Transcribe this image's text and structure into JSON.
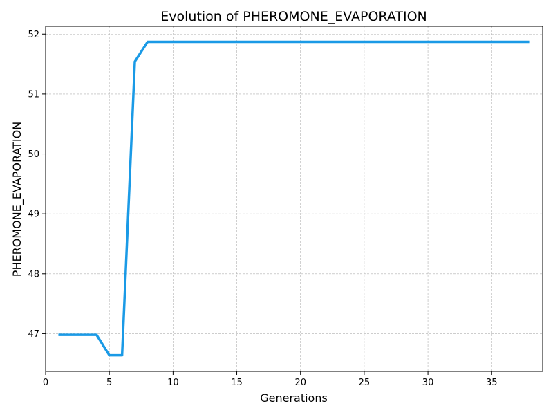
{
  "chart_data": {
    "type": "line",
    "title": "Evolution of PHEROMONE_EVAPORATION",
    "xlabel": "Generations",
    "ylabel": "PHEROMONE_EVAPORATION",
    "xlim": [
      0,
      39
    ],
    "ylim": [
      46.37,
      52.13
    ],
    "xticks": [
      0,
      5,
      10,
      15,
      20,
      25,
      30,
      35
    ],
    "yticks": [
      47,
      48,
      49,
      50,
      51,
      52
    ],
    "grid": true,
    "color": "#1a9ae6",
    "series": [
      {
        "x": [
          1,
          2,
          3,
          4,
          5,
          6,
          7,
          8,
          9,
          10,
          11,
          12,
          13,
          14,
          15,
          16,
          17,
          18,
          19,
          20,
          21,
          22,
          23,
          24,
          25,
          26,
          27,
          28,
          29,
          30,
          31,
          32,
          33,
          34,
          35,
          36,
          37,
          38
        ],
        "values": [
          46.98,
          46.98,
          46.98,
          46.98,
          46.64,
          46.64,
          51.54,
          51.87,
          51.87,
          51.87,
          51.87,
          51.87,
          51.87,
          51.87,
          51.87,
          51.87,
          51.87,
          51.87,
          51.87,
          51.87,
          51.87,
          51.87,
          51.87,
          51.87,
          51.87,
          51.87,
          51.87,
          51.87,
          51.87,
          51.87,
          51.87,
          51.87,
          51.87,
          51.87,
          51.87,
          51.87,
          51.87,
          51.87
        ]
      }
    ]
  }
}
